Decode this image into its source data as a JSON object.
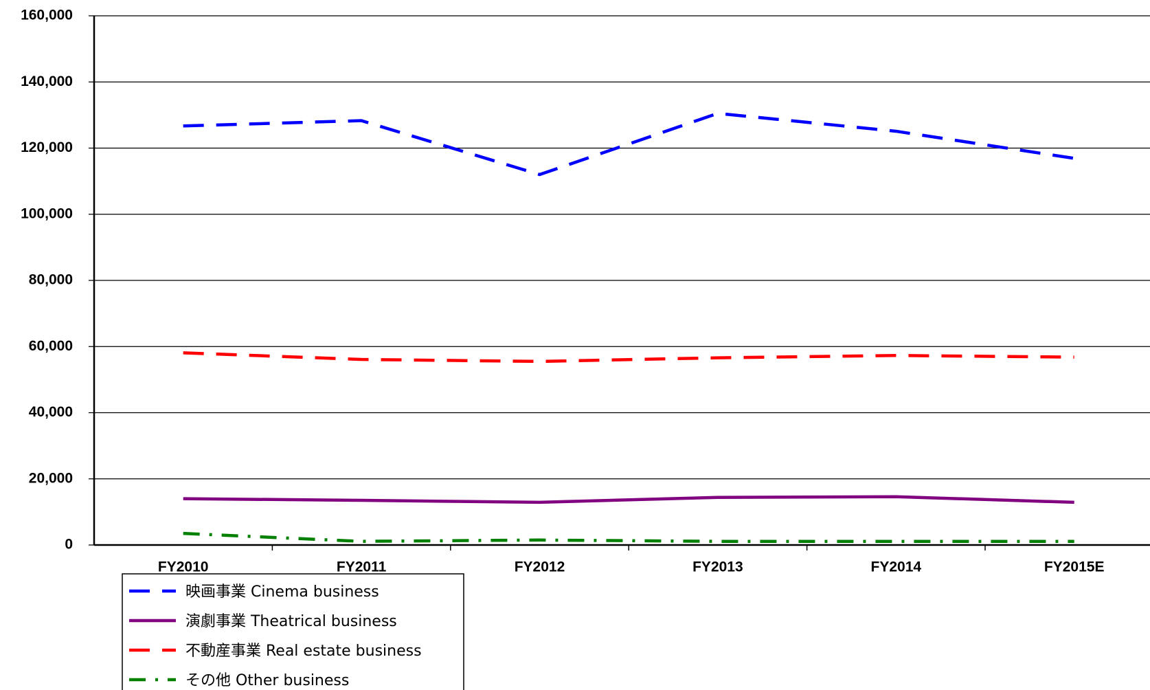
{
  "chart_data": {
    "type": "line",
    "categories": [
      "FY2010",
      "FY2011",
      "FY2012",
      "FY2013",
      "FY2014",
      "FY2015E"
    ],
    "series": [
      {
        "name": "映画事業 Cinema business",
        "color": "#0000ff",
        "line_style": "dashed",
        "values": [
          126700,
          128300,
          112000,
          130500,
          125100,
          116900
        ]
      },
      {
        "name": "演劇事業 Theatrical business",
        "color": "#800080",
        "line_style": "solid",
        "values": [
          14000,
          13500,
          12900,
          14400,
          14600,
          12900
        ]
      },
      {
        "name": "不動産事業 Real estate business",
        "color": "#ff0000",
        "line_style": "dashed",
        "values": [
          58100,
          56100,
          55500,
          56600,
          57300,
          56800
        ]
      },
      {
        "name": "その他 Other business",
        "color": "#008000",
        "line_style": "dashdot",
        "values": [
          3500,
          1100,
          1500,
          1100,
          1100,
          1100
        ]
      }
    ],
    "ylim": [
      0,
      160000
    ],
    "yticks": [
      {
        "value": 0,
        "label": "0"
      },
      {
        "value": 20000,
        "label": "20,000"
      },
      {
        "value": 40000,
        "label": "40,000"
      },
      {
        "value": 60000,
        "label": "60,000"
      },
      {
        "value": 80000,
        "label": "80,000"
      },
      {
        "value": 100000,
        "label": "100,000"
      },
      {
        "value": 120000,
        "label": "120,000"
      },
      {
        "value": 140000,
        "label": "140,000"
      },
      {
        "value": 160000,
        "label": "160,000"
      }
    ],
    "grid": true,
    "legend": "bottom-left"
  }
}
